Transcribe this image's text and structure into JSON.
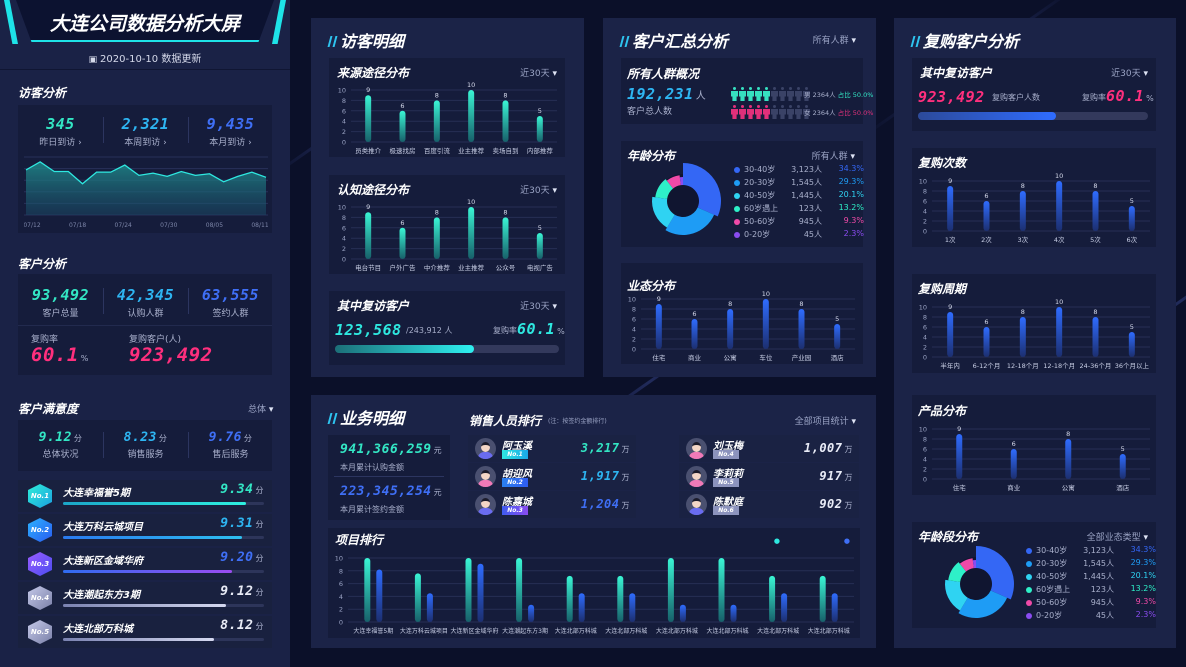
{
  "header": {
    "title": "大连公司数据分析大屏",
    "update": "2020-10-10 数据更新"
  },
  "visitor_analysis": {
    "title": "访客分析",
    "stats": [
      {
        "value": "345",
        "label": "昨日到访 ›"
      },
      {
        "value": "2,321",
        "label": "本周到访 ›"
      },
      {
        "value": "9,435",
        "label": "本月到访 ›"
      }
    ]
  },
  "customer_analysis": {
    "title": "客户分析",
    "stats": [
      {
        "value": "93,492",
        "label": "客户总量"
      },
      {
        "value": "42,345",
        "label": "认购人群"
      },
      {
        "value": "63,555",
        "label": "签约人群"
      }
    ],
    "repurchase_rate_label": "复购率",
    "repurchase_rate": "60.1",
    "percent": "%",
    "repurchase_customers_label": "复购客户(人)",
    "repurchase_customers": "923,492"
  },
  "satisfaction": {
    "title": "客户满意度",
    "filter": "总体",
    "unit": "分",
    "stats": [
      {
        "value": "9.12",
        "label": "总体状况"
      },
      {
        "value": "8.23",
        "label": "销售服务"
      },
      {
        "value": "9.76",
        "label": "售后服务"
      }
    ],
    "ranking": [
      {
        "badge": "No.1",
        "name": "大连幸福誉5期",
        "score": "9.34",
        "progress": 0.91
      },
      {
        "badge": "No.2",
        "name": "大连万科云城项目",
        "score": "9.31",
        "progress": 0.89
      },
      {
        "badge": "No.3",
        "name": "大连新区金域华府",
        "score": "9.20",
        "progress": 0.84
      },
      {
        "badge": "No.4",
        "name": "大连潮起东方3期",
        "score": "9.12",
        "progress": 0.81
      },
      {
        "badge": "No.5",
        "name": "大连北部万科城",
        "score": "8.12",
        "progress": 0.75
      }
    ]
  },
  "visitor_detail": {
    "title": "访客明细",
    "source": {
      "title": "来源途径分布",
      "filter": "近30天"
    },
    "awareness": {
      "title": "认知途径分布",
      "filter": "近30天"
    },
    "revisit": {
      "title": "其中复访客户",
      "filter": "近30天",
      "value": "123,568",
      "total": "/243,912 人",
      "rate_label": "复购率",
      "rate": "60.1",
      "percent": "%",
      "progress": 0.62
    }
  },
  "customer_summary": {
    "title": "客户汇总分析",
    "filter": "所有人群",
    "overview": {
      "title": "所有人群概况",
      "total": "192,231",
      "unit": "人",
      "label": "客户总人数",
      "male": {
        "text": "男 2364人",
        "ratio": "占比 50.0%",
        "filled": 5,
        "total": 10
      },
      "female": {
        "text": "女 2364人",
        "ratio": "占比 50.0%",
        "filled": 5,
        "total": 10
      }
    },
    "age": {
      "title": "年龄分布",
      "filter": "所有人群"
    },
    "business": {
      "title": "业态分布"
    }
  },
  "repurchase": {
    "title": "复购客户分析",
    "revisit": {
      "title": "其中复访客户",
      "filter": "近30天",
      "value": "923,492",
      "label": "复购客户人数",
      "rate_label": "复购率",
      "rate": "60.1",
      "percent": "%",
      "progress": 0.6
    },
    "count": {
      "title": "复购次数"
    },
    "cycle": {
      "title": "复购周期"
    },
    "product": {
      "title": "产品分布"
    },
    "age": {
      "title": "年龄段分布",
      "filter": "全部业态类型"
    }
  },
  "business_detail": {
    "title": "业务明细",
    "subscribe_amount": "941,366,259",
    "subscribe_label": "本月累计认购金额",
    "sign_amount": "223,345,254",
    "sign_label": "本月累计签约金额",
    "currency": "元",
    "sales": {
      "title": "销售人员排行",
      "note": "(注：按签约金额排行)",
      "filter": "全部项目统计",
      "unit": "万",
      "people": [
        {
          "name": "阿玉溪",
          "badge": "No.1",
          "value": "3,217"
        },
        {
          "name": "胡迎风",
          "badge": "No.2",
          "value": "1,917"
        },
        {
          "name": "陈嘉城",
          "badge": "No.3",
          "value": "1,204"
        },
        {
          "name": "刘玉梅",
          "badge": "No.4",
          "value": "1,007"
        },
        {
          "name": "李莉莉",
          "badge": "No.5",
          "value": "917"
        },
        {
          "name": "陈默庭",
          "badge": "No.6",
          "value": "902"
        }
      ]
    },
    "projects": {
      "title": "项目排行"
    }
  },
  "colors": {
    "teal": "#33e6c4",
    "cyan": "#2eb5f2",
    "blue": "#3f6ff5",
    "pink": "#ff2f7d",
    "purple": "#8c4cf0",
    "gray": "#9aa3c8"
  },
  "chart_data": [
    {
      "id": "visitor_line",
      "type": "area",
      "x": [
        "07/12",
        "",
        "",
        "07/18",
        "",
        "",
        "07/24",
        "",
        "",
        "07/30",
        "",
        "",
        "08/05",
        "",
        "",
        "08/11",
        "",
        ""
      ],
      "x_ticks": [
        "07/12",
        "07/18",
        "07/24",
        "07/30",
        "08/05",
        "08/11"
      ],
      "values": [
        140,
        165,
        135,
        135,
        97,
        133,
        133,
        155,
        123,
        130,
        120,
        135,
        123,
        128,
        103,
        120,
        133,
        117
      ],
      "ylim": [
        0,
        180
      ]
    },
    {
      "id": "source",
      "type": "bar",
      "categories": [
        "员类推介",
        "极速找房",
        "百度引流",
        "业主推荐",
        "卖场自到",
        "内部推荐"
      ],
      "values": [
        9,
        6,
        8,
        10,
        8,
        5
      ],
      "ylim": [
        0,
        10
      ]
    },
    {
      "id": "awareness",
      "type": "bar",
      "categories": [
        "电台节目",
        "户外广告",
        "中介推荐",
        "业主推荐",
        "公众号",
        "电视广告"
      ],
      "values": [
        9,
        6,
        8,
        10,
        8,
        5
      ],
      "ylim": [
        0,
        10
      ]
    },
    {
      "id": "business",
      "type": "bar",
      "categories": [
        "住宅",
        "商业",
        "公寓",
        "车位",
        "产业园",
        "酒店"
      ],
      "values": [
        9,
        6,
        8,
        10,
        8,
        5
      ],
      "ylim": [
        0,
        10
      ]
    },
    {
      "id": "count",
      "type": "bar",
      "categories": [
        "1次",
        "2次",
        "3次",
        "4次",
        "5次",
        "6次"
      ],
      "values": [
        9,
        6,
        8,
        10,
        8,
        5
      ],
      "ylim": [
        0,
        10
      ]
    },
    {
      "id": "cycle",
      "type": "bar",
      "categories": [
        "半年内",
        "6-12个月",
        "12-18个月",
        "12-18个月",
        "24-36个月",
        "36个月以上"
      ],
      "values": [
        9,
        6,
        8,
        10,
        8,
        5
      ],
      "ylim": [
        0,
        10
      ]
    },
    {
      "id": "product",
      "type": "bar",
      "categories": [
        "住宅",
        "商业",
        "公寓",
        "酒店"
      ],
      "values": [
        9,
        6,
        8,
        5
      ],
      "ylim": [
        0,
        10
      ]
    },
    {
      "id": "age",
      "type": "pie",
      "series": [
        {
          "name": "30-40岁",
          "count": "3,123人",
          "percent": "34.3%",
          "value": 34.3,
          "color": "#3467f5"
        },
        {
          "name": "20-30岁",
          "count": "1,545人",
          "percent": "29.3%",
          "value": 29.3,
          "color": "#1e9cf5"
        },
        {
          "name": "40-50岁",
          "count": "1,445人",
          "percent": "20.1%",
          "value": 20.1,
          "color": "#2fd3f2"
        },
        {
          "name": "60岁遇上",
          "count": "123人",
          "percent": "13.2%",
          "value": 13.2,
          "color": "#2ef0c8"
        },
        {
          "name": "50-60岁",
          "count": "945人",
          "percent": "9.3%",
          "value": 9.3,
          "color": "#f04aa8"
        },
        {
          "name": "0-20岁",
          "count": "45人",
          "percent": "2.3%",
          "value": 2.3,
          "color": "#8a4cf0"
        }
      ]
    },
    {
      "id": "projects",
      "type": "bar",
      "categories": [
        "大连幸福誉5期",
        "大连万科云城项目",
        "大连新区金域华府",
        "大连潮起东方3期",
        "大连北部万科城",
        "大连北部万科城",
        "大连北部万科城",
        "大连北部万科城",
        "大连北部万科城",
        "大连北部万科城"
      ],
      "series": [
        {
          "name": "认购金额",
          "values": [
            10,
            7.6,
            10,
            10,
            7.2,
            7.2,
            10,
            10,
            7.2,
            7.2
          ]
        },
        {
          "name": "签约金额",
          "values": [
            8.2,
            4.5,
            9.1,
            2.7,
            4.5,
            4.5,
            2.7,
            2.7,
            4.5,
            4.5
          ]
        }
      ],
      "ylim": [
        0,
        10
      ]
    }
  ]
}
